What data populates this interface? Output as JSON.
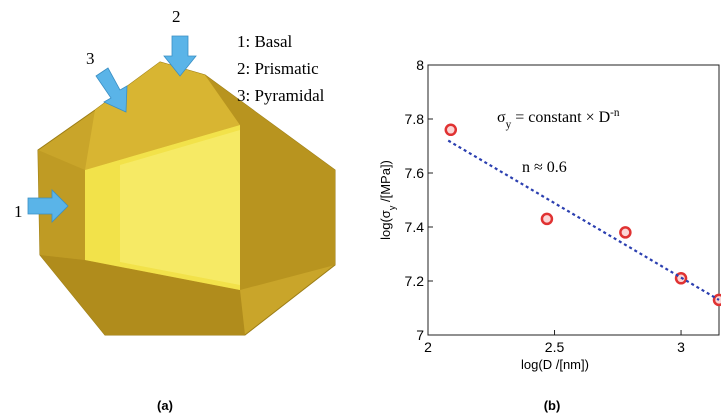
{
  "panel_a": {
    "arrow_labels": [
      "1",
      "2",
      "3"
    ],
    "legend": [
      "1: Basal",
      "2: Prismatic",
      "3: Pyramidal"
    ],
    "caption": "(a)"
  },
  "chart_data": {
    "type": "scatter",
    "caption": "(b)",
    "x_label": "log(D /[nm])",
    "y_label": [
      "log(σ",
      "y",
      " /[MPa])"
    ],
    "annotations": [
      [
        "σ",
        "y",
        " = constant × D",
        "-n"
      ],
      [
        "n ≈ 0.6"
      ]
    ],
    "xlim": [
      2,
      3.15
    ],
    "xticks": [
      2,
      2.5,
      3
    ],
    "ylim": [
      7,
      8
    ],
    "yticks": [
      7,
      7.2,
      7.4,
      7.6,
      7.8,
      8
    ],
    "series": [
      {
        "color": "#e03232",
        "x": [
          2.09,
          2.47,
          2.78,
          3.0,
          3.15
        ],
        "values": [
          7.76,
          7.43,
          7.38,
          7.21,
          7.13
        ]
      },
      {
        "color": "#2b3fb0",
        "style": "dashed",
        "x": [
          2.08,
          3.15
        ],
        "values": [
          7.72,
          7.13
        ]
      }
    ]
  }
}
